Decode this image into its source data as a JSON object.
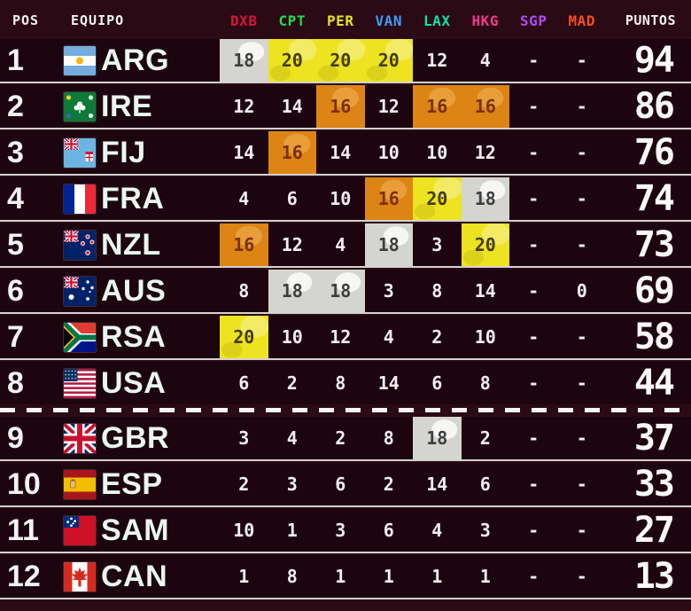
{
  "header": {
    "pos": "POS",
    "equipo": "EQUIPO",
    "puntos": "PUNTOS",
    "events": [
      {
        "code": "DXB",
        "color": "#d6173a"
      },
      {
        "code": "CPT",
        "color": "#29d84b"
      },
      {
        "code": "PER",
        "color": "#e9e222"
      },
      {
        "code": "VAN",
        "color": "#3ba0f5"
      },
      {
        "code": "LAX",
        "color": "#12e3a2"
      },
      {
        "code": "HKG",
        "color": "#ef3a8e"
      },
      {
        "code": "SGP",
        "color": "#ae4cf2"
      },
      {
        "code": "MAD",
        "color": "#fb4d1d"
      }
    ]
  },
  "medal_colors": {
    "gold": "#EDE320",
    "silver": "#D4D5D1",
    "bronze": "#DC8414"
  },
  "cutoff_after": 8,
  "rows": [
    {
      "pos": "1",
      "code": "ARG",
      "results": [
        {
          "v": "18",
          "m": "silver"
        },
        {
          "v": "20",
          "m": "gold"
        },
        {
          "v": "20",
          "m": "gold"
        },
        {
          "v": "20",
          "m": "gold"
        },
        {
          "v": "12"
        },
        {
          "v": "4"
        },
        {
          "v": "-"
        },
        {
          "v": "-"
        }
      ],
      "puntos": "94"
    },
    {
      "pos": "2",
      "code": "IRE",
      "results": [
        {
          "v": "12"
        },
        {
          "v": "14"
        },
        {
          "v": "16",
          "m": "bronze"
        },
        {
          "v": "12"
        },
        {
          "v": "16",
          "m": "bronze"
        },
        {
          "v": "16",
          "m": "bronze"
        },
        {
          "v": "-"
        },
        {
          "v": "-"
        }
      ],
      "puntos": "86"
    },
    {
      "pos": "3",
      "code": "FIJ",
      "results": [
        {
          "v": "14"
        },
        {
          "v": "16",
          "m": "bronze"
        },
        {
          "v": "14"
        },
        {
          "v": "10"
        },
        {
          "v": "10"
        },
        {
          "v": "12"
        },
        {
          "v": "-"
        },
        {
          "v": "-"
        }
      ],
      "puntos": "76"
    },
    {
      "pos": "4",
      "code": "FRA",
      "results": [
        {
          "v": "4"
        },
        {
          "v": "6"
        },
        {
          "v": "10"
        },
        {
          "v": "16",
          "m": "bronze"
        },
        {
          "v": "20",
          "m": "gold"
        },
        {
          "v": "18",
          "m": "silver"
        },
        {
          "v": "-"
        },
        {
          "v": "-"
        }
      ],
      "puntos": "74"
    },
    {
      "pos": "5",
      "code": "NZL",
      "results": [
        {
          "v": "16",
          "m": "bronze"
        },
        {
          "v": "12"
        },
        {
          "v": "4"
        },
        {
          "v": "18",
          "m": "silver"
        },
        {
          "v": "3"
        },
        {
          "v": "20",
          "m": "gold"
        },
        {
          "v": "-"
        },
        {
          "v": "-"
        }
      ],
      "puntos": "73"
    },
    {
      "pos": "6",
      "code": "AUS",
      "results": [
        {
          "v": "8"
        },
        {
          "v": "18",
          "m": "silver"
        },
        {
          "v": "18",
          "m": "silver"
        },
        {
          "v": "3"
        },
        {
          "v": "8"
        },
        {
          "v": "14"
        },
        {
          "v": "-"
        },
        {
          "v": "0"
        }
      ],
      "puntos": "69"
    },
    {
      "pos": "7",
      "code": "RSA",
      "results": [
        {
          "v": "20",
          "m": "gold"
        },
        {
          "v": "10"
        },
        {
          "v": "12"
        },
        {
          "v": "4"
        },
        {
          "v": "2"
        },
        {
          "v": "10"
        },
        {
          "v": "-"
        },
        {
          "v": "-"
        }
      ],
      "puntos": "58"
    },
    {
      "pos": "8",
      "code": "USA",
      "results": [
        {
          "v": "6"
        },
        {
          "v": "2"
        },
        {
          "v": "8"
        },
        {
          "v": "14"
        },
        {
          "v": "6"
        },
        {
          "v": "8"
        },
        {
          "v": "-"
        },
        {
          "v": "-"
        }
      ],
      "puntos": "44"
    },
    {
      "pos": "9",
      "code": "GBR",
      "results": [
        {
          "v": "3"
        },
        {
          "v": "4"
        },
        {
          "v": "2"
        },
        {
          "v": "8"
        },
        {
          "v": "18",
          "m": "silver"
        },
        {
          "v": "2"
        },
        {
          "v": "-"
        },
        {
          "v": "-"
        }
      ],
      "puntos": "37"
    },
    {
      "pos": "10",
      "code": "ESP",
      "results": [
        {
          "v": "2"
        },
        {
          "v": "3"
        },
        {
          "v": "6"
        },
        {
          "v": "2"
        },
        {
          "v": "14"
        },
        {
          "v": "6"
        },
        {
          "v": "-"
        },
        {
          "v": "-"
        }
      ],
      "puntos": "33"
    },
    {
      "pos": "11",
      "code": "SAM",
      "results": [
        {
          "v": "10"
        },
        {
          "v": "1"
        },
        {
          "v": "3"
        },
        {
          "v": "6"
        },
        {
          "v": "4"
        },
        {
          "v": "3"
        },
        {
          "v": "-"
        },
        {
          "v": "-"
        }
      ],
      "puntos": "27"
    },
    {
      "pos": "12",
      "code": "CAN",
      "results": [
        {
          "v": "1"
        },
        {
          "v": "8"
        },
        {
          "v": "1"
        },
        {
          "v": "1"
        },
        {
          "v": "1"
        },
        {
          "v": "1"
        },
        {
          "v": "-"
        },
        {
          "v": "-"
        }
      ],
      "puntos": "13"
    }
  ]
}
